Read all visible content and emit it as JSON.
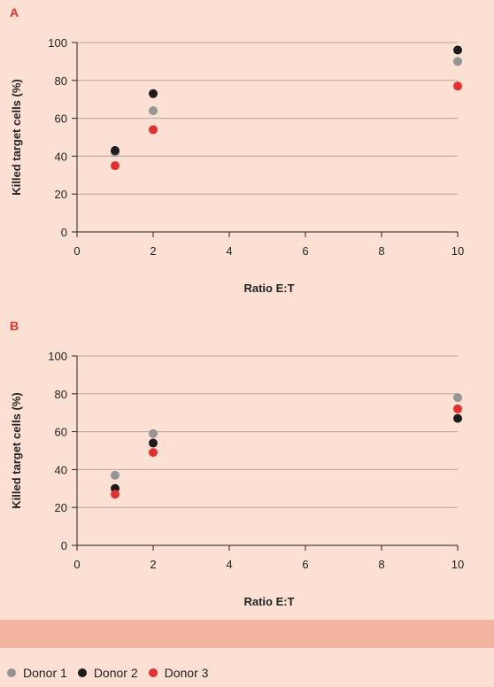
{
  "chart_data": [
    {
      "type": "scatter",
      "panel_label": "A",
      "xlabel": "Ratio E:T",
      "ylabel": "Killed target cells (%)",
      "xlim": [
        0,
        10
      ],
      "ylim": [
        0,
        100
      ],
      "x_ticks": [
        0,
        2,
        4,
        6,
        8,
        10
      ],
      "y_ticks": [
        0,
        20,
        40,
        60,
        80,
        100
      ],
      "grid": "horizontal",
      "series": [
        {
          "name": "Donor 1",
          "color": "#959595",
          "x": [
            1,
            2,
            10
          ],
          "y": [
            42,
            64,
            90
          ]
        },
        {
          "name": "Donor 2",
          "color": "#1c1c1c",
          "x": [
            1,
            2,
            10
          ],
          "y": [
            43,
            73,
            96
          ]
        },
        {
          "name": "Donor 3",
          "color": "#e0312f",
          "x": [
            1,
            2,
            10
          ],
          "y": [
            35,
            54,
            77
          ]
        }
      ]
    },
    {
      "type": "scatter",
      "panel_label": "B",
      "xlabel": "Ratio E:T",
      "ylabel": "Killed target cells (%)",
      "xlim": [
        0,
        10
      ],
      "ylim": [
        0,
        100
      ],
      "x_ticks": [
        0,
        2,
        4,
        6,
        8,
        10
      ],
      "y_ticks": [
        0,
        20,
        40,
        60,
        80,
        100
      ],
      "grid": "horizontal",
      "series": [
        {
          "name": "Donor 1",
          "color": "#959595",
          "x": [
            1,
            2,
            10
          ],
          "y": [
            37,
            59,
            78
          ]
        },
        {
          "name": "Donor 2",
          "color": "#1c1c1c",
          "x": [
            1,
            2,
            10
          ],
          "y": [
            30,
            54,
            67
          ]
        },
        {
          "name": "Donor 3",
          "color": "#e0312f",
          "x": [
            1,
            2,
            10
          ],
          "y": [
            27,
            49,
            72
          ]
        }
      ]
    }
  ],
  "legend": [
    {
      "label": "Donor 1",
      "color": "#959595"
    },
    {
      "label": "Donor 2",
      "color": "#1c1c1c"
    },
    {
      "label": "Donor 3",
      "color": "#e0312f"
    }
  ]
}
